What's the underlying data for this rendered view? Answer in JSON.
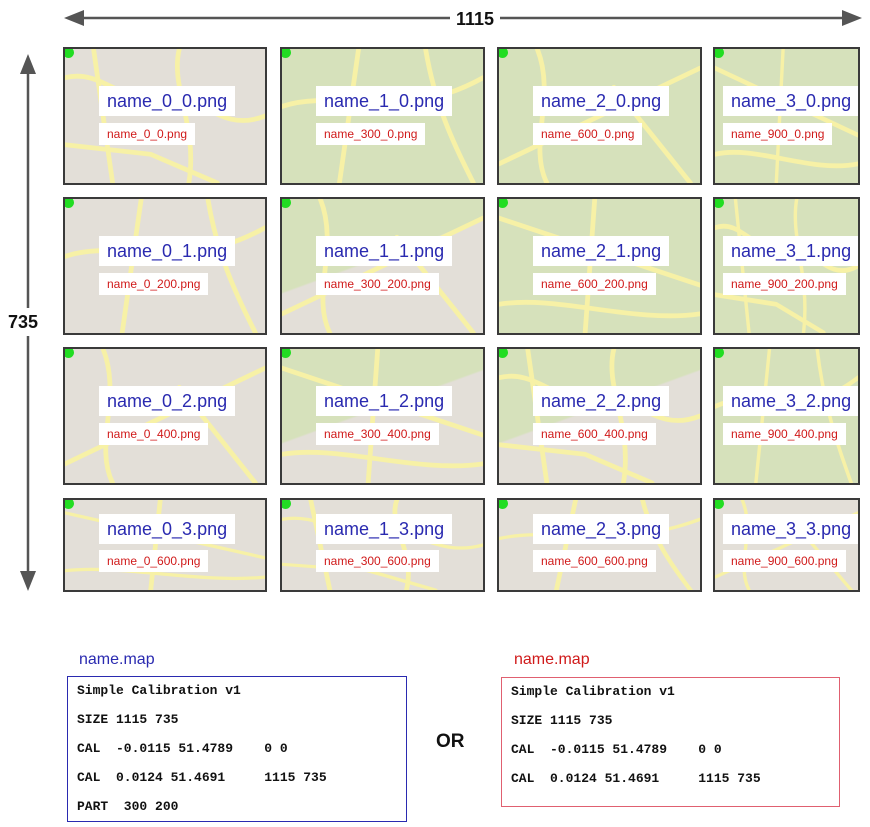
{
  "dimensions": {
    "width_label": "1115",
    "height_label": "735"
  },
  "tiles": [
    [
      {
        "file": "name_0_0.png",
        "offset": "name_0_0.png"
      },
      {
        "file": "name_1_0.png",
        "offset": "name_300_0.png"
      },
      {
        "file": "name_2_0.png",
        "offset": "name_600_0.png"
      },
      {
        "file": "name_3_0.png",
        "offset": "name_900_0.png"
      }
    ],
    [
      {
        "file": "name_0_1.png",
        "offset": "name_0_200.png"
      },
      {
        "file": "name_1_1.png",
        "offset": "name_300_200.png"
      },
      {
        "file": "name_2_1.png",
        "offset": "name_600_200.png"
      },
      {
        "file": "name_3_1.png",
        "offset": "name_900_200.png"
      }
    ],
    [
      {
        "file": "name_0_2.png",
        "offset": "name_0_400.png"
      },
      {
        "file": "name_1_2.png",
        "offset": "name_300_400.png"
      },
      {
        "file": "name_2_2.png",
        "offset": "name_600_400.png"
      },
      {
        "file": "name_3_2.png",
        "offset": "name_900_400.png"
      }
    ],
    [
      {
        "file": "name_0_3.png",
        "offset": "name_0_600.png"
      },
      {
        "file": "name_1_3.png",
        "offset": "name_300_600.png"
      },
      {
        "file": "name_2_3.png",
        "offset": "name_600_600.png"
      },
      {
        "file": "name_3_3.png",
        "offset": "name_900_600.png"
      }
    ]
  ],
  "map_files": {
    "left": {
      "title": "name.map",
      "lines": [
        "Simple Calibration v1",
        "SIZE 1115 735",
        "CAL  -0.0115 51.4789    0 0",
        "CAL  0.0124 51.4691     1115 735",
        "PART  300 200"
      ]
    },
    "or_label": "OR",
    "right": {
      "title": "name.map",
      "lines": [
        "Simple Calibration v1",
        "SIZE 1115 735",
        "CAL  -0.0115 51.4789    0 0",
        "CAL  0.0124 51.4691     1115 735"
      ]
    }
  },
  "colors": {
    "filename_text": "#2a2ab0",
    "offset_text": "#d01a1a",
    "corner_marker": "#22dd22",
    "map_green": "#d6e1bb",
    "map_grey": "#e3dfd8",
    "road_yellow": "#f7f1a6"
  }
}
